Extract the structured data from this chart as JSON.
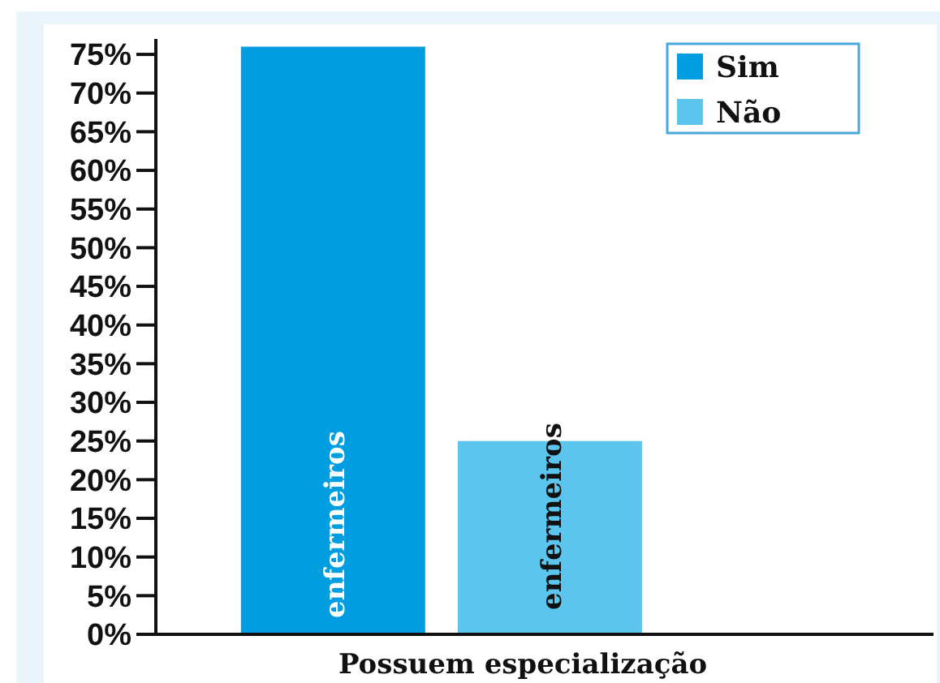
{
  "chart_data": {
    "type": "bar",
    "categories": [
      "Possuem especialização"
    ],
    "series": [
      {
        "name": "Sim",
        "color": "#009ee0",
        "values": [
          76
        ]
      },
      {
        "name": "Não",
        "color": "#5bc5ed",
        "values": [
          25
        ]
      }
    ],
    "annotations": [
      "enfermeiros",
      "enfermeiros"
    ],
    "ylim": [
      0,
      77
    ],
    "yticks": [
      {
        "value": 0,
        "label": "0%"
      },
      {
        "value": 5,
        "label": "5%"
      },
      {
        "value": 10,
        "label": "10%"
      },
      {
        "value": 15,
        "label": "15%"
      },
      {
        "value": 20,
        "label": "20%"
      },
      {
        "value": 25,
        "label": "25%"
      },
      {
        "value": 30,
        "label": "30%"
      },
      {
        "value": 35,
        "label": "35%"
      },
      {
        "value": 40,
        "label": "40%"
      },
      {
        "value": 45,
        "label": "45%"
      },
      {
        "value": 50,
        "label": "50%"
      },
      {
        "value": 55,
        "label": "55%"
      },
      {
        "value": 60,
        "label": "60%"
      },
      {
        "value": 65,
        "label": "65%"
      },
      {
        "value": 70,
        "label": "70%"
      },
      {
        "value": 75,
        "label": "75%"
      }
    ],
    "grid": false,
    "legend": "top right"
  }
}
